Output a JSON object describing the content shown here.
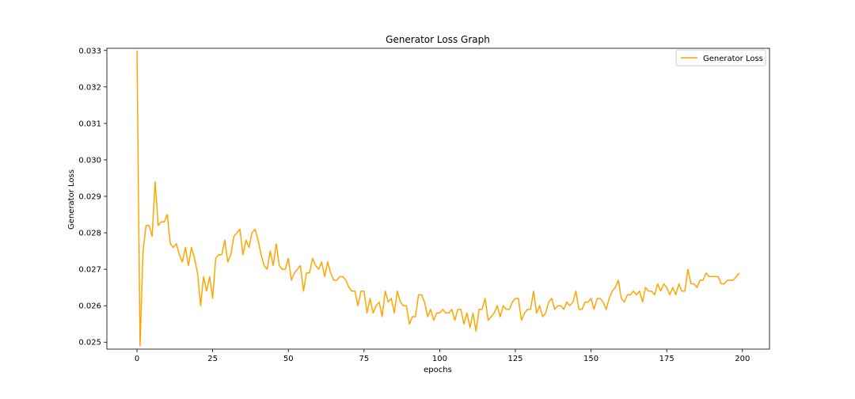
{
  "chart_data": {
    "type": "line",
    "title": "Generator Loss Graph",
    "xlabel": "epochs",
    "ylabel": "Generator Loss",
    "xlim": [
      -9.95,
      208.95
    ],
    "ylim": [
      0.02481,
      0.03306
    ],
    "xticks": [
      0,
      25,
      50,
      75,
      100,
      125,
      150,
      175,
      200
    ],
    "yticks": [
      0.025,
      0.026,
      0.027,
      0.028,
      0.029,
      0.03,
      0.031,
      0.032,
      0.033
    ],
    "ytick_labels": [
      "0.025",
      "0.026",
      "0.027",
      "0.028",
      "0.029",
      "0.030",
      "0.031",
      "0.032",
      "0.033"
    ],
    "grid": false,
    "legend_position": "top-right",
    "series": [
      {
        "name": "Generator Loss",
        "color": "#ffa500",
        "x_start": 0,
        "x_step": 1,
        "values": [
          0.033,
          0.0249,
          0.0275,
          0.0282,
          0.0282,
          0.0279,
          0.0294,
          0.0282,
          0.0283,
          0.0283,
          0.0285,
          0.0277,
          0.0276,
          0.0277,
          0.0274,
          0.0272,
          0.0276,
          0.0271,
          0.0276,
          0.0273,
          0.0269,
          0.026,
          0.0268,
          0.0264,
          0.0268,
          0.0262,
          0.0273,
          0.0274,
          0.0274,
          0.0278,
          0.0272,
          0.0274,
          0.0279,
          0.028,
          0.0281,
          0.0274,
          0.0278,
          0.0276,
          0.028,
          0.0281,
          0.0278,
          0.0274,
          0.0271,
          0.027,
          0.0275,
          0.0271,
          0.0277,
          0.0271,
          0.027,
          0.027,
          0.0273,
          0.0267,
          0.0269,
          0.027,
          0.0271,
          0.0264,
          0.0269,
          0.0269,
          0.0273,
          0.0271,
          0.027,
          0.0272,
          0.0268,
          0.0272,
          0.0269,
          0.0267,
          0.0267,
          0.0268,
          0.0268,
          0.0267,
          0.0265,
          0.0264,
          0.0264,
          0.026,
          0.0264,
          0.0264,
          0.0258,
          0.0262,
          0.0258,
          0.026,
          0.0261,
          0.0257,
          0.0264,
          0.0261,
          0.0262,
          0.0258,
          0.0264,
          0.0261,
          0.026,
          0.026,
          0.0255,
          0.0257,
          0.0257,
          0.0263,
          0.0263,
          0.0261,
          0.0257,
          0.0259,
          0.0256,
          0.0258,
          0.0258,
          0.0259,
          0.0258,
          0.0258,
          0.0259,
          0.0256,
          0.0259,
          0.0259,
          0.0255,
          0.0258,
          0.0254,
          0.0258,
          0.0253,
          0.0259,
          0.0259,
          0.0262,
          0.0256,
          0.0257,
          0.0258,
          0.026,
          0.0257,
          0.026,
          0.0259,
          0.0259,
          0.0261,
          0.0262,
          0.0262,
          0.0256,
          0.0258,
          0.0259,
          0.0259,
          0.0264,
          0.0258,
          0.026,
          0.0257,
          0.0258,
          0.0261,
          0.0262,
          0.0259,
          0.026,
          0.026,
          0.0259,
          0.0261,
          0.026,
          0.0261,
          0.0264,
          0.0259,
          0.0259,
          0.0261,
          0.0261,
          0.0262,
          0.0259,
          0.0262,
          0.0262,
          0.0261,
          0.0259,
          0.0262,
          0.0264,
          0.0265,
          0.0267,
          0.0262,
          0.0261,
          0.0263,
          0.0263,
          0.0264,
          0.0263,
          0.0264,
          0.0261,
          0.0265,
          0.0264,
          0.0264,
          0.0263,
          0.0266,
          0.0264,
          0.0266,
          0.0265,
          0.0263,
          0.0265,
          0.0263,
          0.0266,
          0.0264,
          0.0264,
          0.027,
          0.0266,
          0.0266,
          0.0265,
          0.0267,
          0.0267,
          0.0269,
          0.0268,
          0.0268,
          0.0268,
          0.0268,
          0.0266,
          0.0266,
          0.0267,
          0.0267,
          0.0267,
          0.0268,
          0.0269
        ]
      }
    ]
  }
}
